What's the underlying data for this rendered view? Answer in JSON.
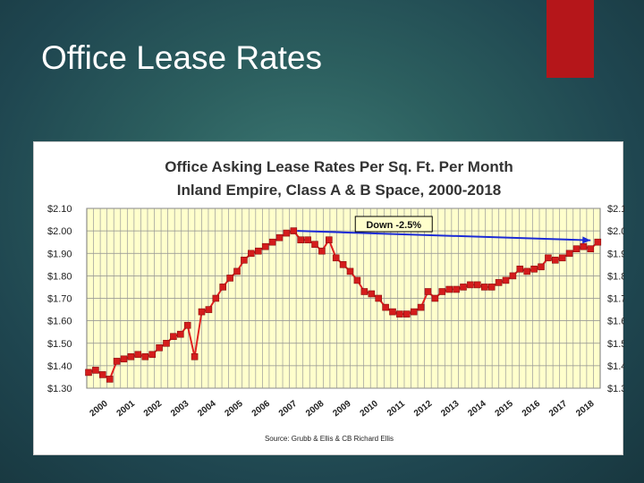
{
  "slide": {
    "title": "Office Lease Rates",
    "accent_color": "#b5161a",
    "background_color": "#2c5f5f"
  },
  "chart_data": {
    "type": "line",
    "title": "Office Asking Lease Rates Per Sq. Ft. Per Month",
    "subtitle": "Inland Empire, Class A & B Space, 2000-2018",
    "source": "Source:  Grubb & Ellis & CB Richard Ellis",
    "annotation": "Down -2.5%",
    "plot_background": "#ffffcc",
    "line_color": "#e02020",
    "marker_color": "#d41c1c",
    "annotation_color": "#1c2bd6",
    "grid": true,
    "ylim": [
      1.3,
      2.1
    ],
    "y_ticks": [
      {
        "value": 2.1,
        "label": "$2.10"
      },
      {
        "value": 2.0,
        "label": "$2.00"
      },
      {
        "value": 1.9,
        "label": "$1.90"
      },
      {
        "value": 1.8,
        "label": "$1.80"
      },
      {
        "value": 1.7,
        "label": "$1.70"
      },
      {
        "value": 1.6,
        "label": "$1.60"
      },
      {
        "value": 1.5,
        "label": "$1.50"
      },
      {
        "value": 1.4,
        "label": "$1.40"
      },
      {
        "value": 1.3,
        "label": "$1.30"
      }
    ],
    "x_ticks": [
      "2000",
      "2001",
      "2002",
      "2003",
      "2004",
      "2005",
      "2006",
      "2007",
      "2008",
      "2009",
      "2010",
      "2011",
      "2012",
      "2013",
      "2014",
      "2015",
      "2016",
      "2017",
      "2018"
    ],
    "series": [
      {
        "values": [
          1.37,
          1.38,
          1.36,
          1.34,
          1.42,
          1.43,
          1.44,
          1.45,
          1.44,
          1.45,
          1.48,
          1.5,
          1.53,
          1.54,
          1.58,
          1.44,
          1.64,
          1.65,
          1.7,
          1.75,
          1.79,
          1.82,
          1.87,
          1.9,
          1.91,
          1.93,
          1.95,
          1.97,
          1.99,
          2.0,
          1.96,
          1.96,
          1.94,
          1.91,
          1.96,
          1.88,
          1.85,
          1.82,
          1.78,
          1.73,
          1.72,
          1.7,
          1.66,
          1.64,
          1.63,
          1.63,
          1.64,
          1.66,
          1.73,
          1.7,
          1.73,
          1.74,
          1.74,
          1.75,
          1.76,
          1.76,
          1.75,
          1.75,
          1.77,
          1.78,
          1.8,
          1.83,
          1.82,
          1.83,
          1.84,
          1.88,
          1.87,
          1.88,
          1.9,
          1.92,
          1.93,
          1.92,
          1.95
        ]
      }
    ]
  }
}
